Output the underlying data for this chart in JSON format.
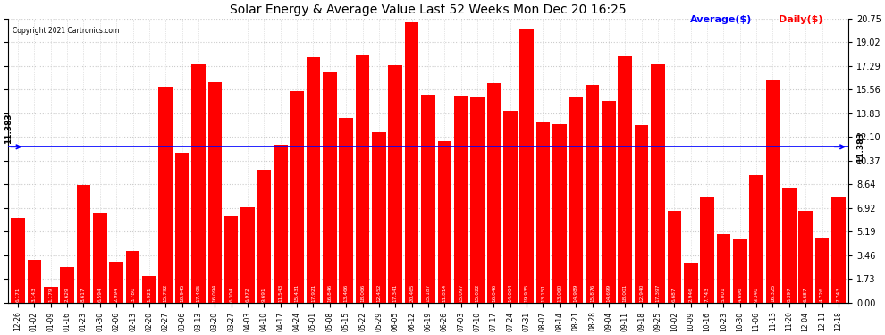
{
  "title": "Solar Energy & Average Value Last 52 Weeks Mon Dec 20 16:25",
  "copyright": "Copyright 2021 Cartronics.com",
  "legend_avg": "Average($)",
  "legend_daily": "Daily($)",
  "average_line": 11.383,
  "bar_color": "#FF0000",
  "avg_line_color": "#0000FF",
  "yticks": [
    0.0,
    1.73,
    3.46,
    5.19,
    6.92,
    8.64,
    10.37,
    12.1,
    13.83,
    15.56,
    17.29,
    19.02,
    20.75
  ],
  "avg_annotation": "11.383",
  "categories": [
    "12-26",
    "01-02",
    "01-09",
    "01-16",
    "01-23",
    "01-30",
    "02-06",
    "02-13",
    "02-20",
    "02-27",
    "03-06",
    "03-13",
    "03-20",
    "03-27",
    "04-03",
    "04-10",
    "04-17",
    "04-24",
    "05-01",
    "05-08",
    "05-15",
    "05-22",
    "05-29",
    "06-05",
    "06-12",
    "06-19",
    "06-26",
    "07-03",
    "07-10",
    "07-17",
    "07-24",
    "07-31",
    "08-07",
    "08-14",
    "08-21",
    "08-28",
    "09-04",
    "09-11",
    "09-18",
    "09-25",
    "10-02",
    "10-09",
    "10-16",
    "10-23",
    "10-30",
    "11-06",
    "11-13",
    "11-20",
    "12-04",
    "12-11",
    "12-18"
  ],
  "values": [
    6.171,
    3.143,
    1.179,
    2.629,
    8.617,
    6.594,
    2.994,
    3.78,
    1.921,
    15.792,
    10.945,
    17.405,
    16.094,
    6.304,
    6.972,
    9.691,
    11.543,
    15.431,
    17.921,
    16.846,
    13.466,
    18.066,
    12.452,
    17.341,
    20.465,
    15.187,
    11.814,
    15.097,
    15.022,
    16.046,
    14.004,
    19.935,
    13.151,
    13.06,
    14.989,
    15.876,
    14.699,
    18.001,
    12.94,
    17.397,
    6.687,
    2.946,
    7.743,
    5.001,
    4.696,
    9.34,
    16.325,
    8.397,
    6.687,
    4.726,
    7.743
  ],
  "bar_value_labels": [
    "6.171",
    "3.143",
    "1.179",
    "2.629",
    "8.617",
    "6.594",
    "2.994",
    "3.780",
    "1.921",
    "15.792",
    "10.945",
    "17.405",
    "16.094",
    "6.304",
    "6.972",
    "9.691",
    "11.543",
    "15.431",
    "17.921",
    "16.846",
    "13.466",
    "18.066",
    "12.452",
    "17.341",
    "20.465",
    "15.187",
    "11.814",
    "15.097",
    "15.022",
    "16.046",
    "14.004",
    "19.935",
    "13.151",
    "13.060",
    "14.989",
    "15.876",
    "14.699",
    "18.001",
    "12.940",
    "17.397",
    "6.687",
    "2.946",
    "7.743",
    "5.001",
    "4.696",
    "9.340",
    "16.325",
    "8.397",
    "6.687",
    "4.726",
    "7.743"
  ],
  "background_color": "#FFFFFF",
  "grid_color": "#CCCCCC",
  "figsize": [
    9.9,
    3.75
  ],
  "dpi": 100
}
